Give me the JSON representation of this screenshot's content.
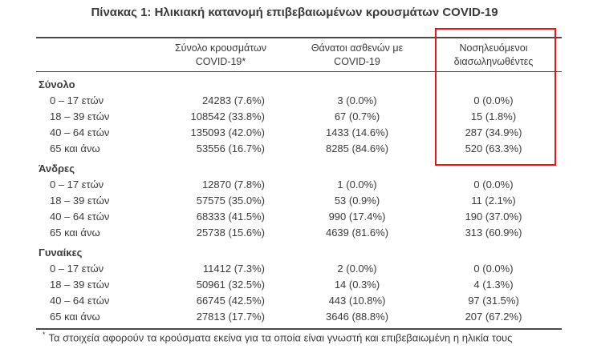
{
  "title": "Πίνακας 1: Ηλικιακή κατανομή επιβεβαιωμένων κρουσμάτων COVID-19",
  "colors": {
    "text": "#3a3a3c",
    "highlight_box": "#f01414",
    "rules": "#4a4a4c"
  },
  "table": {
    "columns": [
      {
        "line1": "Σύνολο κρουσμάτων",
        "line2": "COVID-19*"
      },
      {
        "line1": "Θάνατοι ασθενών με",
        "line2": "COVID-19"
      },
      {
        "line1": "Νοσηλευόμενοι",
        "line2": "διασωληνωθέντες"
      }
    ],
    "sections": [
      {
        "label": "Σύνολο",
        "rows": [
          {
            "age": "0 – 17 ετών",
            "cases": "24283 (7.6%)",
            "deaths": "3 (0.0%)",
            "intubated": "0 (0.0%)"
          },
          {
            "age": "18 – 39 ετών",
            "cases": "108542 (33.8%)",
            "deaths": "67 (0.7%)",
            "intubated": "15 (1.8%)"
          },
          {
            "age": "40 – 64 ετών",
            "cases": "135093 (42.0%)",
            "deaths": "1433 (14.6%)",
            "intubated": "287 (34.9%)"
          },
          {
            "age": "65 και άνω",
            "cases": "53556 (16.7%)",
            "deaths": "8285 (84.6%)",
            "intubated": "520 (63.3%)"
          }
        ]
      },
      {
        "label": "Άνδρες",
        "rows": [
          {
            "age": "0 – 17 ετών",
            "cases": "12870 (7.8%)",
            "deaths": "1 (0.0%)",
            "intubated": "0 (0.0%)"
          },
          {
            "age": "18 – 39 ετών",
            "cases": "57575 (35.0%)",
            "deaths": "53 (0.9%)",
            "intubated": "11 (2.1%)"
          },
          {
            "age": "40 – 64 ετών",
            "cases": "68333 (41.5%)",
            "deaths": "990 (17.4%)",
            "intubated": "190 (37.0%)"
          },
          {
            "age": "65 και άνω",
            "cases": "25738 (15.6%)",
            "deaths": "4639 (81.6%)",
            "intubated": "313 (60.9%)"
          }
        ]
      },
      {
        "label": "Γυναίκες",
        "rows": [
          {
            "age": "0 – 17 ετών",
            "cases": "11412 (7.3%)",
            "deaths": "2 (0.0%)",
            "intubated": "0 (0.0%)"
          },
          {
            "age": "18 – 39 ετών",
            "cases": "50961 (32.5%)",
            "deaths": "14 (0.3%)",
            "intubated": "4 (1.3%)"
          },
          {
            "age": "40 – 64 ετών",
            "cases": "66745 (42.5%)",
            "deaths": "443 (10.8%)",
            "intubated": "97 (31.5%)"
          },
          {
            "age": "65 και άνω",
            "cases": "27813 (17.7%)",
            "deaths": "3646 (88.8%)",
            "intubated": "207 (67.2%)"
          }
        ]
      }
    ]
  },
  "footnote": {
    "marker": "*",
    "text": "Τα στοιχεία αφορούν τα κρούσματα εκείνα για τα οποία είναι γνωστή και επιβεβαιωμένη η ηλικία τους"
  }
}
